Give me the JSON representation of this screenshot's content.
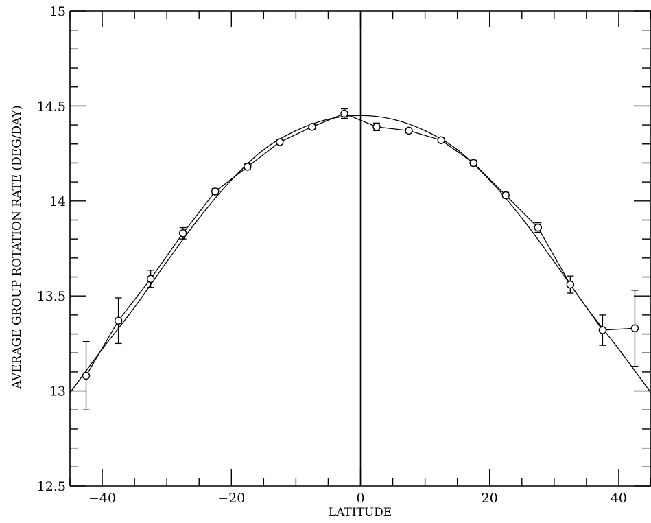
{
  "chart_data": {
    "type": "line",
    "title": "",
    "xlabel": "LATITUDE",
    "ylabel": "AVERAGE GROUP ROTATION RATE (DEG/DAY)",
    "xlim": [
      -45,
      45
    ],
    "ylim": [
      12.5,
      15
    ],
    "xticks": [
      -40,
      -20,
      0,
      20,
      40
    ],
    "xtick_labels": [
      "−40",
      "−20",
      "0",
      "20",
      "40"
    ],
    "yticks": [
      12.5,
      13,
      13.5,
      14,
      14.5,
      15
    ],
    "ytick_labels": [
      "12.5",
      "13",
      "13.5",
      "14",
      "14.5",
      "15"
    ],
    "grid": false,
    "legend": "none",
    "reference_line_x": 0,
    "series": [
      {
        "kind": "measured",
        "x": [
          -42.5,
          -37.5,
          -32.5,
          -27.5,
          -22.5,
          -17.5,
          -12.5,
          -7.5,
          -2.5,
          2.5,
          7.5,
          12.5,
          17.5,
          22.5,
          27.5,
          32.5,
          37.5,
          42.5
        ],
        "y": [
          13.08,
          13.37,
          13.59,
          13.83,
          14.05,
          14.18,
          14.31,
          14.39,
          14.46,
          14.39,
          14.37,
          14.32,
          14.2,
          14.03,
          13.86,
          13.56,
          13.32,
          13.33
        ],
        "yerr": [
          0.18,
          0.12,
          0.045,
          0.03,
          0.015,
          0.015,
          0.012,
          0.012,
          0.025,
          0.02,
          0.012,
          0.012,
          0.015,
          0.015,
          0.025,
          0.045,
          0.08,
          0.2
        ]
      },
      {
        "kind": "fit",
        "x": [
          -45,
          -40,
          -35,
          -30,
          -25,
          -20,
          -15,
          -10,
          -5,
          0,
          5,
          10,
          15,
          20,
          25,
          30,
          35,
          40,
          45
        ],
        "y": [
          12.99,
          13.22,
          13.44,
          13.68,
          13.91,
          14.11,
          14.27,
          14.37,
          14.43,
          14.45,
          14.43,
          14.37,
          14.27,
          14.11,
          13.91,
          13.68,
          13.44,
          13.22,
          12.99
        ]
      }
    ]
  }
}
